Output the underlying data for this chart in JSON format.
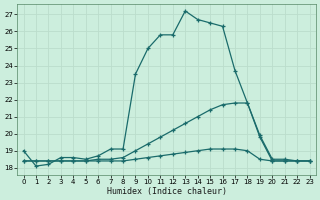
{
  "xlabel": "Humidex (Indice chaleur)",
  "bg_color": "#cceedd",
  "grid_color": "#bbddcc",
  "line_color": "#1a6b6b",
  "xlim": [
    -0.5,
    23.5
  ],
  "ylim": [
    17.6,
    27.6
  ],
  "yticks": [
    18,
    19,
    20,
    21,
    22,
    23,
    24,
    25,
    26,
    27
  ],
  "xticks": [
    0,
    1,
    2,
    3,
    4,
    5,
    6,
    7,
    8,
    9,
    10,
    11,
    12,
    13,
    14,
    15,
    16,
    17,
    18,
    19,
    20,
    21,
    22,
    23
  ],
  "series": [
    [
      19.0,
      18.1,
      18.2,
      18.6,
      18.6,
      18.5,
      18.7,
      19.1,
      19.1,
      23.5,
      25.0,
      25.8,
      25.8,
      27.2,
      26.7,
      26.5,
      26.3,
      23.7,
      21.8,
      19.9,
      18.5,
      18.5,
      18.4,
      18.4
    ],
    [
      18.4,
      18.4,
      18.4,
      18.4,
      18.4,
      18.4,
      18.5,
      18.5,
      18.6,
      19.0,
      19.4,
      19.8,
      20.2,
      20.6,
      21.0,
      21.4,
      21.7,
      21.8,
      21.8,
      19.8,
      18.4,
      18.4,
      18.4,
      18.4
    ],
    [
      18.4,
      18.4,
      18.4,
      18.4,
      18.4,
      18.4,
      18.4,
      18.4,
      18.4,
      18.5,
      18.6,
      18.7,
      18.8,
      18.9,
      19.0,
      19.1,
      19.1,
      19.1,
      19.0,
      18.5,
      18.4,
      18.4,
      18.4,
      18.4
    ]
  ]
}
